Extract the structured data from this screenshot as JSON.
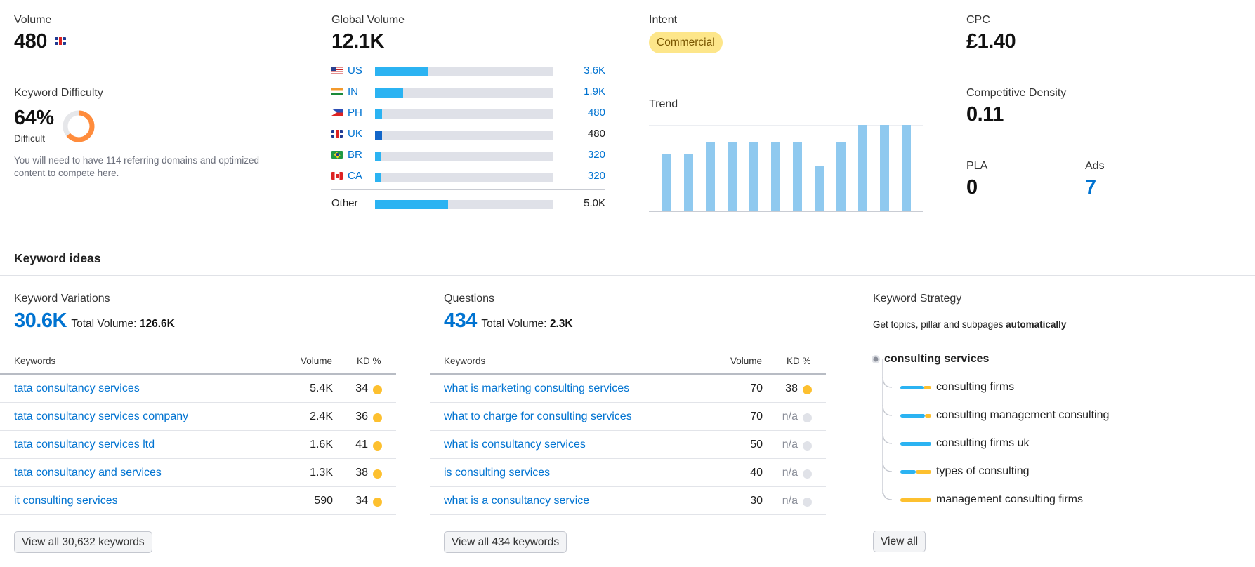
{
  "volume": {
    "label": "Volume",
    "value": "480",
    "flag_icon": "uk-flag-icon"
  },
  "keyword_difficulty": {
    "label": "Keyword Difficulty",
    "value": "64%",
    "level": "Difficult",
    "percent": 64,
    "gauge_color": "#ff8c3c",
    "description": "You will need to have 114 referring domains and optimized content to compete here."
  },
  "global_volume": {
    "label": "Global Volume",
    "value": "12.1K",
    "countries": [
      {
        "code": "US",
        "value": "3.6K",
        "share": 0.3,
        "flag": "us-flag-icon"
      },
      {
        "code": "IN",
        "value": "1.9K",
        "share": 0.16,
        "flag": "in-flag-icon"
      },
      {
        "code": "PH",
        "value": "480",
        "share": 0.04,
        "flag": "ph-flag-icon"
      },
      {
        "code": "UK",
        "value": "480",
        "share": 0.04,
        "flag": "uk-flag-icon"
      },
      {
        "code": "BR",
        "value": "320",
        "share": 0.03,
        "flag": "br-flag-icon"
      },
      {
        "code": "CA",
        "value": "320",
        "share": 0.03,
        "flag": "ca-flag-icon"
      }
    ],
    "other": {
      "label": "Other",
      "value": "5.0K",
      "share": 0.41
    }
  },
  "intent": {
    "label": "Intent",
    "value": "Commercial",
    "color": "#fde68a"
  },
  "trend": {
    "label": "Trend",
    "values": [
      0.67,
      0.67,
      0.8,
      0.8,
      0.8,
      0.8,
      0.8,
      0.53,
      0.8,
      1.0,
      1.0,
      1.0
    ],
    "color": "#8fc9ef"
  },
  "cpc": {
    "label": "CPC",
    "value": "£1.40"
  },
  "competitive_density": {
    "label": "Competitive Density",
    "value": "0.11"
  },
  "pla": {
    "label": "PLA",
    "value": "0"
  },
  "ads": {
    "label": "Ads",
    "value": "7"
  },
  "keyword_ideas": {
    "title": "Keyword ideas"
  },
  "variations": {
    "title": "Keyword Variations",
    "count": "30.6K",
    "total_label": "Total Volume:",
    "total_value": "126.6K",
    "headers": {
      "keywords": "Keywords",
      "volume": "Volume",
      "kd": "KD %"
    },
    "rows": [
      {
        "keyword": "tata consultancy services",
        "volume": "5.4K",
        "kd": "34",
        "dot": "yellow"
      },
      {
        "keyword": "tata consultancy services company",
        "volume": "2.4K",
        "kd": "36",
        "dot": "yellow"
      },
      {
        "keyword": "tata consultancy services ltd",
        "volume": "1.6K",
        "kd": "41",
        "dot": "yellow"
      },
      {
        "keyword": "tata consultancy and services",
        "volume": "1.3K",
        "kd": "38",
        "dot": "yellow"
      },
      {
        "keyword": "it consulting services",
        "volume": "590",
        "kd": "34",
        "dot": "yellow"
      }
    ],
    "button": "View all 30,632 keywords"
  },
  "questions": {
    "title": "Questions",
    "count": "434",
    "total_label": "Total Volume:",
    "total_value": "2.3K",
    "headers": {
      "keywords": "Keywords",
      "volume": "Volume",
      "kd": "KD %"
    },
    "rows": [
      {
        "keyword": "what is marketing consulting services",
        "volume": "70",
        "kd": "38",
        "dot": "yellow"
      },
      {
        "keyword": "what to charge for consulting services",
        "volume": "70",
        "kd": "n/a",
        "dot": "gray"
      },
      {
        "keyword": "what is consultancy services",
        "volume": "50",
        "kd": "n/a",
        "dot": "gray"
      },
      {
        "keyword": "is consulting services",
        "volume": "40",
        "kd": "n/a",
        "dot": "gray"
      },
      {
        "keyword": "what is a consultancy service",
        "volume": "30",
        "kd": "n/a",
        "dot": "gray"
      }
    ],
    "button": "View all 434 keywords"
  },
  "strategy": {
    "title": "Keyword Strategy",
    "subtitle_prefix": "Get topics, pillar and subpages",
    "subtitle_bold": "automatically",
    "root": "consulting services",
    "children": [
      {
        "label": "consulting firms",
        "blue": 0.75,
        "yellow": 0.25
      },
      {
        "label": "consulting management consulting",
        "blue": 0.8,
        "yellow": 0.2
      },
      {
        "label": "consulting firms uk",
        "blue": 1.0,
        "yellow": 0.0
      },
      {
        "label": "types of consulting",
        "blue": 0.5,
        "yellow": 0.5
      },
      {
        "label": "management consulting firms",
        "blue": 0.0,
        "yellow": 1.0
      }
    ],
    "button": "View all"
  }
}
